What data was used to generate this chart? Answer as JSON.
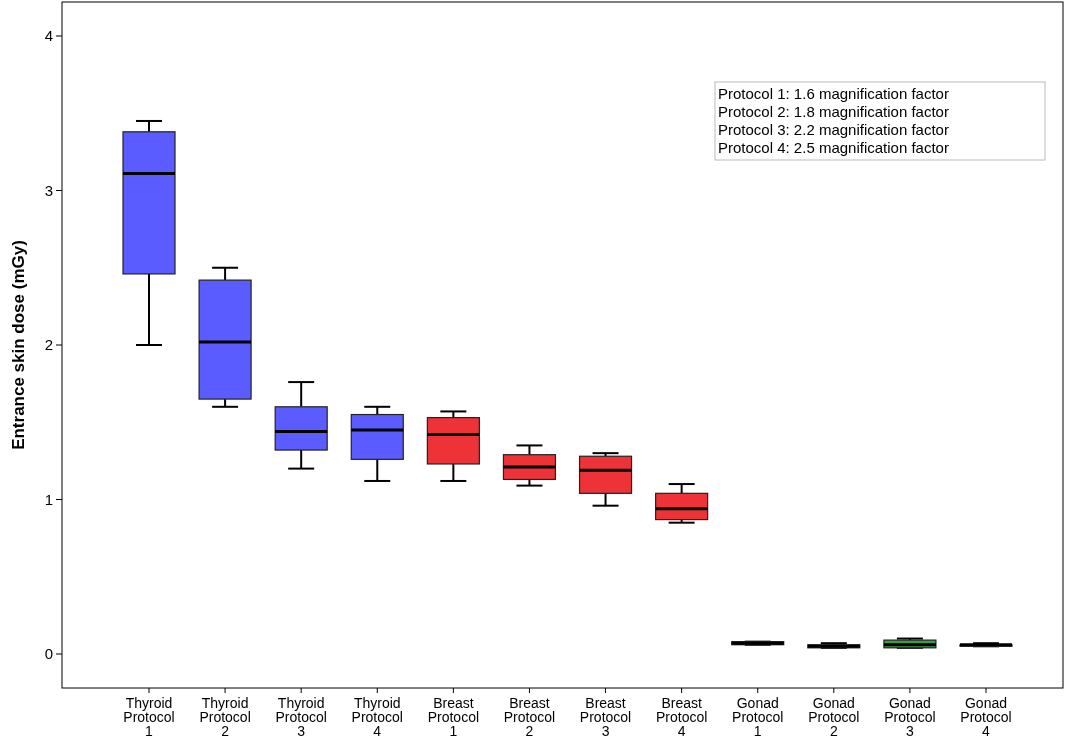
{
  "chart_data": {
    "type": "box",
    "ylabel": "Entrance skin dose (mGy)",
    "categories": [
      "Thyroid Protocol 1",
      "Thyroid Protocol 2",
      "Thyroid Protocol 3",
      "Thyroid Protocol 4",
      "Breast Protocol 1",
      "Breast Protocol 2",
      "Breast Protocol 3",
      "Breast Protocol 4",
      "Gonad Protocol 1",
      "Gonad Protocol 2",
      "Gonad Protocol 3",
      "Gonad Protocol 4"
    ],
    "colors": [
      "#5a5cff",
      "#5a5cff",
      "#5a5cff",
      "#5a5cff",
      "#ee3338",
      "#ee3338",
      "#ee3338",
      "#ee3338",
      "#5a5cff",
      "#5a5cff",
      "#3f9a4a",
      "#5a5cff"
    ],
    "boxes": [
      {
        "low": 2.0,
        "q1": 2.46,
        "median": 3.11,
        "q3": 3.38,
        "high": 3.45
      },
      {
        "low": 1.6,
        "q1": 1.65,
        "median": 2.02,
        "q3": 2.42,
        "high": 2.5
      },
      {
        "low": 1.2,
        "q1": 1.32,
        "median": 1.44,
        "q3": 1.6,
        "high": 1.76
      },
      {
        "low": 1.12,
        "q1": 1.26,
        "median": 1.45,
        "q3": 1.55,
        "high": 1.6
      },
      {
        "low": 1.12,
        "q1": 1.23,
        "median": 1.42,
        "q3": 1.53,
        "high": 1.57
      },
      {
        "low": 1.09,
        "q1": 1.13,
        "median": 1.21,
        "q3": 1.29,
        "high": 1.35
      },
      {
        "low": 0.96,
        "q1": 1.04,
        "median": 1.19,
        "q3": 1.28,
        "high": 1.3
      },
      {
        "low": 0.85,
        "q1": 0.87,
        "median": 0.94,
        "q3": 1.04,
        "high": 1.1
      },
      {
        "low": 0.06,
        "q1": 0.06,
        "median": 0.07,
        "q3": 0.08,
        "high": 0.08
      },
      {
        "low": 0.04,
        "q1": 0.04,
        "median": 0.05,
        "q3": 0.06,
        "high": 0.07
      },
      {
        "low": 0.04,
        "q1": 0.04,
        "median": 0.06,
        "q3": 0.09,
        "high": 0.1
      },
      {
        "low": 0.05,
        "q1": 0.05,
        "median": 0.06,
        "q3": 0.06,
        "high": 0.07
      }
    ],
    "ylim": [
      -0.22,
      4.22
    ],
    "yticks": [
      0,
      1,
      2,
      3,
      4
    ],
    "annotations": [
      "Protocol 1: 1.6 magnification factor",
      "Protocol 2: 1.8 magnification factor",
      "Protocol 3: 2.2 magnification factor",
      "Protocol 4: 2.5 magnification factor"
    ]
  }
}
